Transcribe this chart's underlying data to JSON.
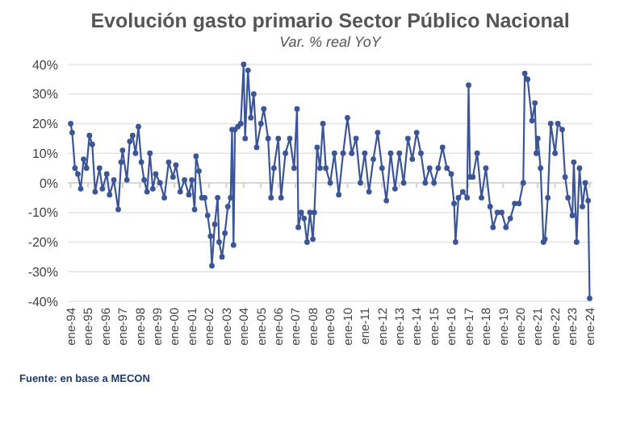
{
  "chart_data": {
    "type": "line",
    "title": "Evolución gasto primario Sector Público Nacional",
    "subtitle": "Var. % real YoY",
    "annotations": [
      "Fuente: en base a MECON"
    ],
    "x": [
      "1994-01",
      "1994-02",
      "1994-04",
      "1994-06",
      "1994-08",
      "1994-10",
      "1994-12",
      "1995-02",
      "1995-04",
      "1995-06",
      "1995-09",
      "1995-11",
      "1996-02",
      "1996-04",
      "1996-07",
      "1996-10",
      "1996-12",
      "1997-01",
      "1997-04",
      "1997-06",
      "1997-08",
      "1997-10",
      "1997-12",
      "1998-02",
      "1998-04",
      "1998-06",
      "1998-08",
      "1998-10",
      "1998-12",
      "1999-03",
      "1999-06",
      "1999-09",
      "1999-12",
      "2000-02",
      "2000-05",
      "2000-08",
      "2000-11",
      "2001-01",
      "2001-03",
      "2001-04",
      "2001-06",
      "2001-08",
      "2001-10",
      "2001-12",
      "2002-02",
      "2002-03",
      "2002-05",
      "2002-07",
      "2002-08",
      "2002-10",
      "2002-12",
      "2003-02",
      "2003-04",
      "2003-05",
      "2003-06",
      "2003-07",
      "2003-09",
      "2003-11",
      "2004-01",
      "2004-02",
      "2004-04",
      "2004-06",
      "2004-08",
      "2004-10",
      "2005-01",
      "2005-03",
      "2005-06",
      "2005-08",
      "2005-10",
      "2006-01",
      "2006-03",
      "2006-06",
      "2006-09",
      "2006-12",
      "2007-02",
      "2007-03",
      "2007-05",
      "2007-07",
      "2007-09",
      "2007-11",
      "2008-01",
      "2008-02",
      "2008-04",
      "2008-06",
      "2008-08",
      "2008-10",
      "2009-01",
      "2009-04",
      "2009-07",
      "2009-10",
      "2010-01",
      "2010-04",
      "2010-07",
      "2010-10",
      "2011-01",
      "2011-04",
      "2011-07",
      "2011-10",
      "2012-01",
      "2012-04",
      "2012-07",
      "2012-10",
      "2013-01",
      "2013-04",
      "2013-07",
      "2013-10",
      "2014-01",
      "2014-04",
      "2014-07",
      "2014-10",
      "2015-01",
      "2015-04",
      "2015-07",
      "2015-10",
      "2016-01",
      "2016-03",
      "2016-04",
      "2016-06",
      "2016-09",
      "2016-12",
      "2017-01",
      "2017-02",
      "2017-04",
      "2017-07",
      "2017-10",
      "2018-01",
      "2018-04",
      "2018-06",
      "2018-09",
      "2018-12",
      "2019-03",
      "2019-06",
      "2019-09",
      "2019-12",
      "2020-03",
      "2020-04",
      "2020-06",
      "2020-09",
      "2020-11",
      "2020-12",
      "2021-01",
      "2021-03",
      "2021-05",
      "2021-06",
      "2021-08",
      "2021-10",
      "2022-01",
      "2022-03",
      "2022-06",
      "2022-08",
      "2022-10",
      "2023-01",
      "2023-02",
      "2023-04",
      "2023-06",
      "2023-08",
      "2023-10",
      "2023-12",
      "2024-01"
    ],
    "series": [
      {
        "color": "#3b5597",
        "values": [
          20,
          17,
          5,
          3,
          -2,
          8,
          5,
          16,
          13,
          -3,
          5,
          -2,
          3,
          -4,
          1,
          -9,
          7,
          11,
          1,
          14,
          16,
          10,
          19,
          7,
          1,
          -3,
          10,
          -2,
          3,
          0,
          -5,
          7,
          2,
          6,
          -3,
          1,
          -4,
          1,
          -9,
          9,
          4,
          -5,
          -5,
          -11,
          -18,
          -28,
          -14,
          -5,
          -20,
          -25,
          -17,
          -8,
          -5,
          18,
          -21,
          18,
          19,
          20,
          40,
          15,
          38,
          22,
          30,
          12,
          20,
          25,
          15,
          -5,
          5,
          15,
          -5,
          10,
          15,
          5,
          25,
          -15,
          -10,
          -12,
          -20,
          -10,
          -19,
          -10,
          12,
          5,
          20,
          5,
          0,
          10,
          -4,
          10,
          22,
          10,
          15,
          0,
          10,
          -3,
          8,
          17,
          5,
          -6,
          10,
          -2,
          10,
          0,
          15,
          8,
          17,
          10,
          0,
          5,
          0,
          5,
          12,
          5,
          3,
          -7,
          -20,
          -5,
          -3,
          -5,
          33,
          2,
          2,
          10,
          -5,
          5,
          -8,
          -15,
          -10,
          -10,
          -15,
          -12,
          -7,
          -7,
          0,
          37,
          35,
          21,
          27,
          10,
          15,
          5,
          -20,
          -19,
          -5,
          20,
          10,
          20,
          18,
          2,
          -5,
          -11,
          7,
          -20,
          5,
          -8,
          0,
          -6,
          -39
        ]
      }
    ],
    "xlim": [
      "1993-11",
      "2024-03"
    ],
    "xticks": [
      {
        "value": "1994-01",
        "label": "ene-94"
      },
      {
        "value": "1995-01",
        "label": "ene-95"
      },
      {
        "value": "1996-01",
        "label": "ene-96"
      },
      {
        "value": "1997-01",
        "label": "ene-97"
      },
      {
        "value": "1998-01",
        "label": "ene-98"
      },
      {
        "value": "1999-01",
        "label": "ene-99"
      },
      {
        "value": "2000-01",
        "label": "ene-00"
      },
      {
        "value": "2001-01",
        "label": "ene-01"
      },
      {
        "value": "2002-01",
        "label": "ene-02"
      },
      {
        "value": "2003-01",
        "label": "ene-03"
      },
      {
        "value": "2004-01",
        "label": "ene-04"
      },
      {
        "value": "2005-01",
        "label": "ene-05"
      },
      {
        "value": "2006-01",
        "label": "ene-06"
      },
      {
        "value": "2007-01",
        "label": "ene-07"
      },
      {
        "value": "2008-01",
        "label": "ene-08"
      },
      {
        "value": "2009-01",
        "label": "ene-09"
      },
      {
        "value": "2010-01",
        "label": "ene-10"
      },
      {
        "value": "2011-01",
        "label": "ene-11"
      },
      {
        "value": "2012-01",
        "label": "ene-12"
      },
      {
        "value": "2013-01",
        "label": "ene-13"
      },
      {
        "value": "2014-01",
        "label": "ene-14"
      },
      {
        "value": "2015-01",
        "label": "ene-15"
      },
      {
        "value": "2016-01",
        "label": "ene-16"
      },
      {
        "value": "2017-01",
        "label": "ene-17"
      },
      {
        "value": "2018-01",
        "label": "ene-18"
      },
      {
        "value": "2019-01",
        "label": "ene-19"
      },
      {
        "value": "2020-01",
        "label": "ene-20"
      },
      {
        "value": "2021-01",
        "label": "ene-21"
      },
      {
        "value": "2022-01",
        "label": "ene-22"
      },
      {
        "value": "2023-01",
        "label": "ene-23"
      },
      {
        "value": "2024-01",
        "label": "ene-24"
      }
    ],
    "ylim": [
      -40,
      40
    ],
    "yticks": [
      {
        "value": -40,
        "label": "-40%"
      },
      {
        "value": -30,
        "label": "-30%"
      },
      {
        "value": -20,
        "label": "-20%"
      },
      {
        "value": -10,
        "label": "-10%"
      },
      {
        "value": 0,
        "label": "0%"
      },
      {
        "value": 10,
        "label": "10%"
      },
      {
        "value": 20,
        "label": "20%"
      },
      {
        "value": 30,
        "label": "30%"
      },
      {
        "value": 40,
        "label": "40%"
      }
    ],
    "grid": "y",
    "marker": "circle",
    "line_style": "solid"
  }
}
